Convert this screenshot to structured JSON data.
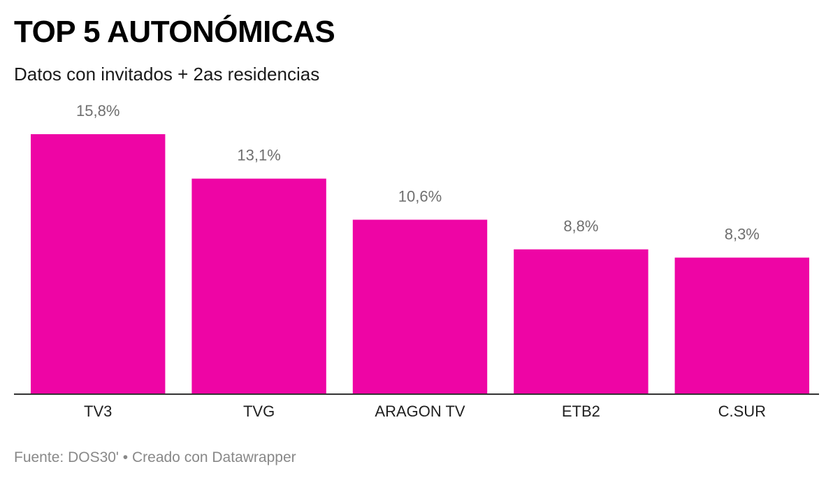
{
  "header": {
    "title": "TOP 5 AUTONÓMICAS",
    "subtitle": "Datos con invitados + 2as residencias"
  },
  "footer": {
    "source_label": "Fuente:",
    "source_name": "DOS30'",
    "separator": "•",
    "credit": "Creado con Datawrapper"
  },
  "colors": {
    "bar": "#ee05a5",
    "baseline": "#333333"
  },
  "chart_data": {
    "type": "bar",
    "categories": [
      "TV3",
      "TVG",
      "ARAGON TV",
      "ETB2",
      "C.SUR"
    ],
    "values": [
      15.8,
      13.1,
      10.6,
      8.8,
      8.3
    ],
    "value_labels": [
      "15,8%",
      "13,1%",
      "10,6%",
      "8,8%",
      "8,3%"
    ],
    "ylim": [
      0,
      15.8
    ],
    "grid": false,
    "legend": "none"
  }
}
